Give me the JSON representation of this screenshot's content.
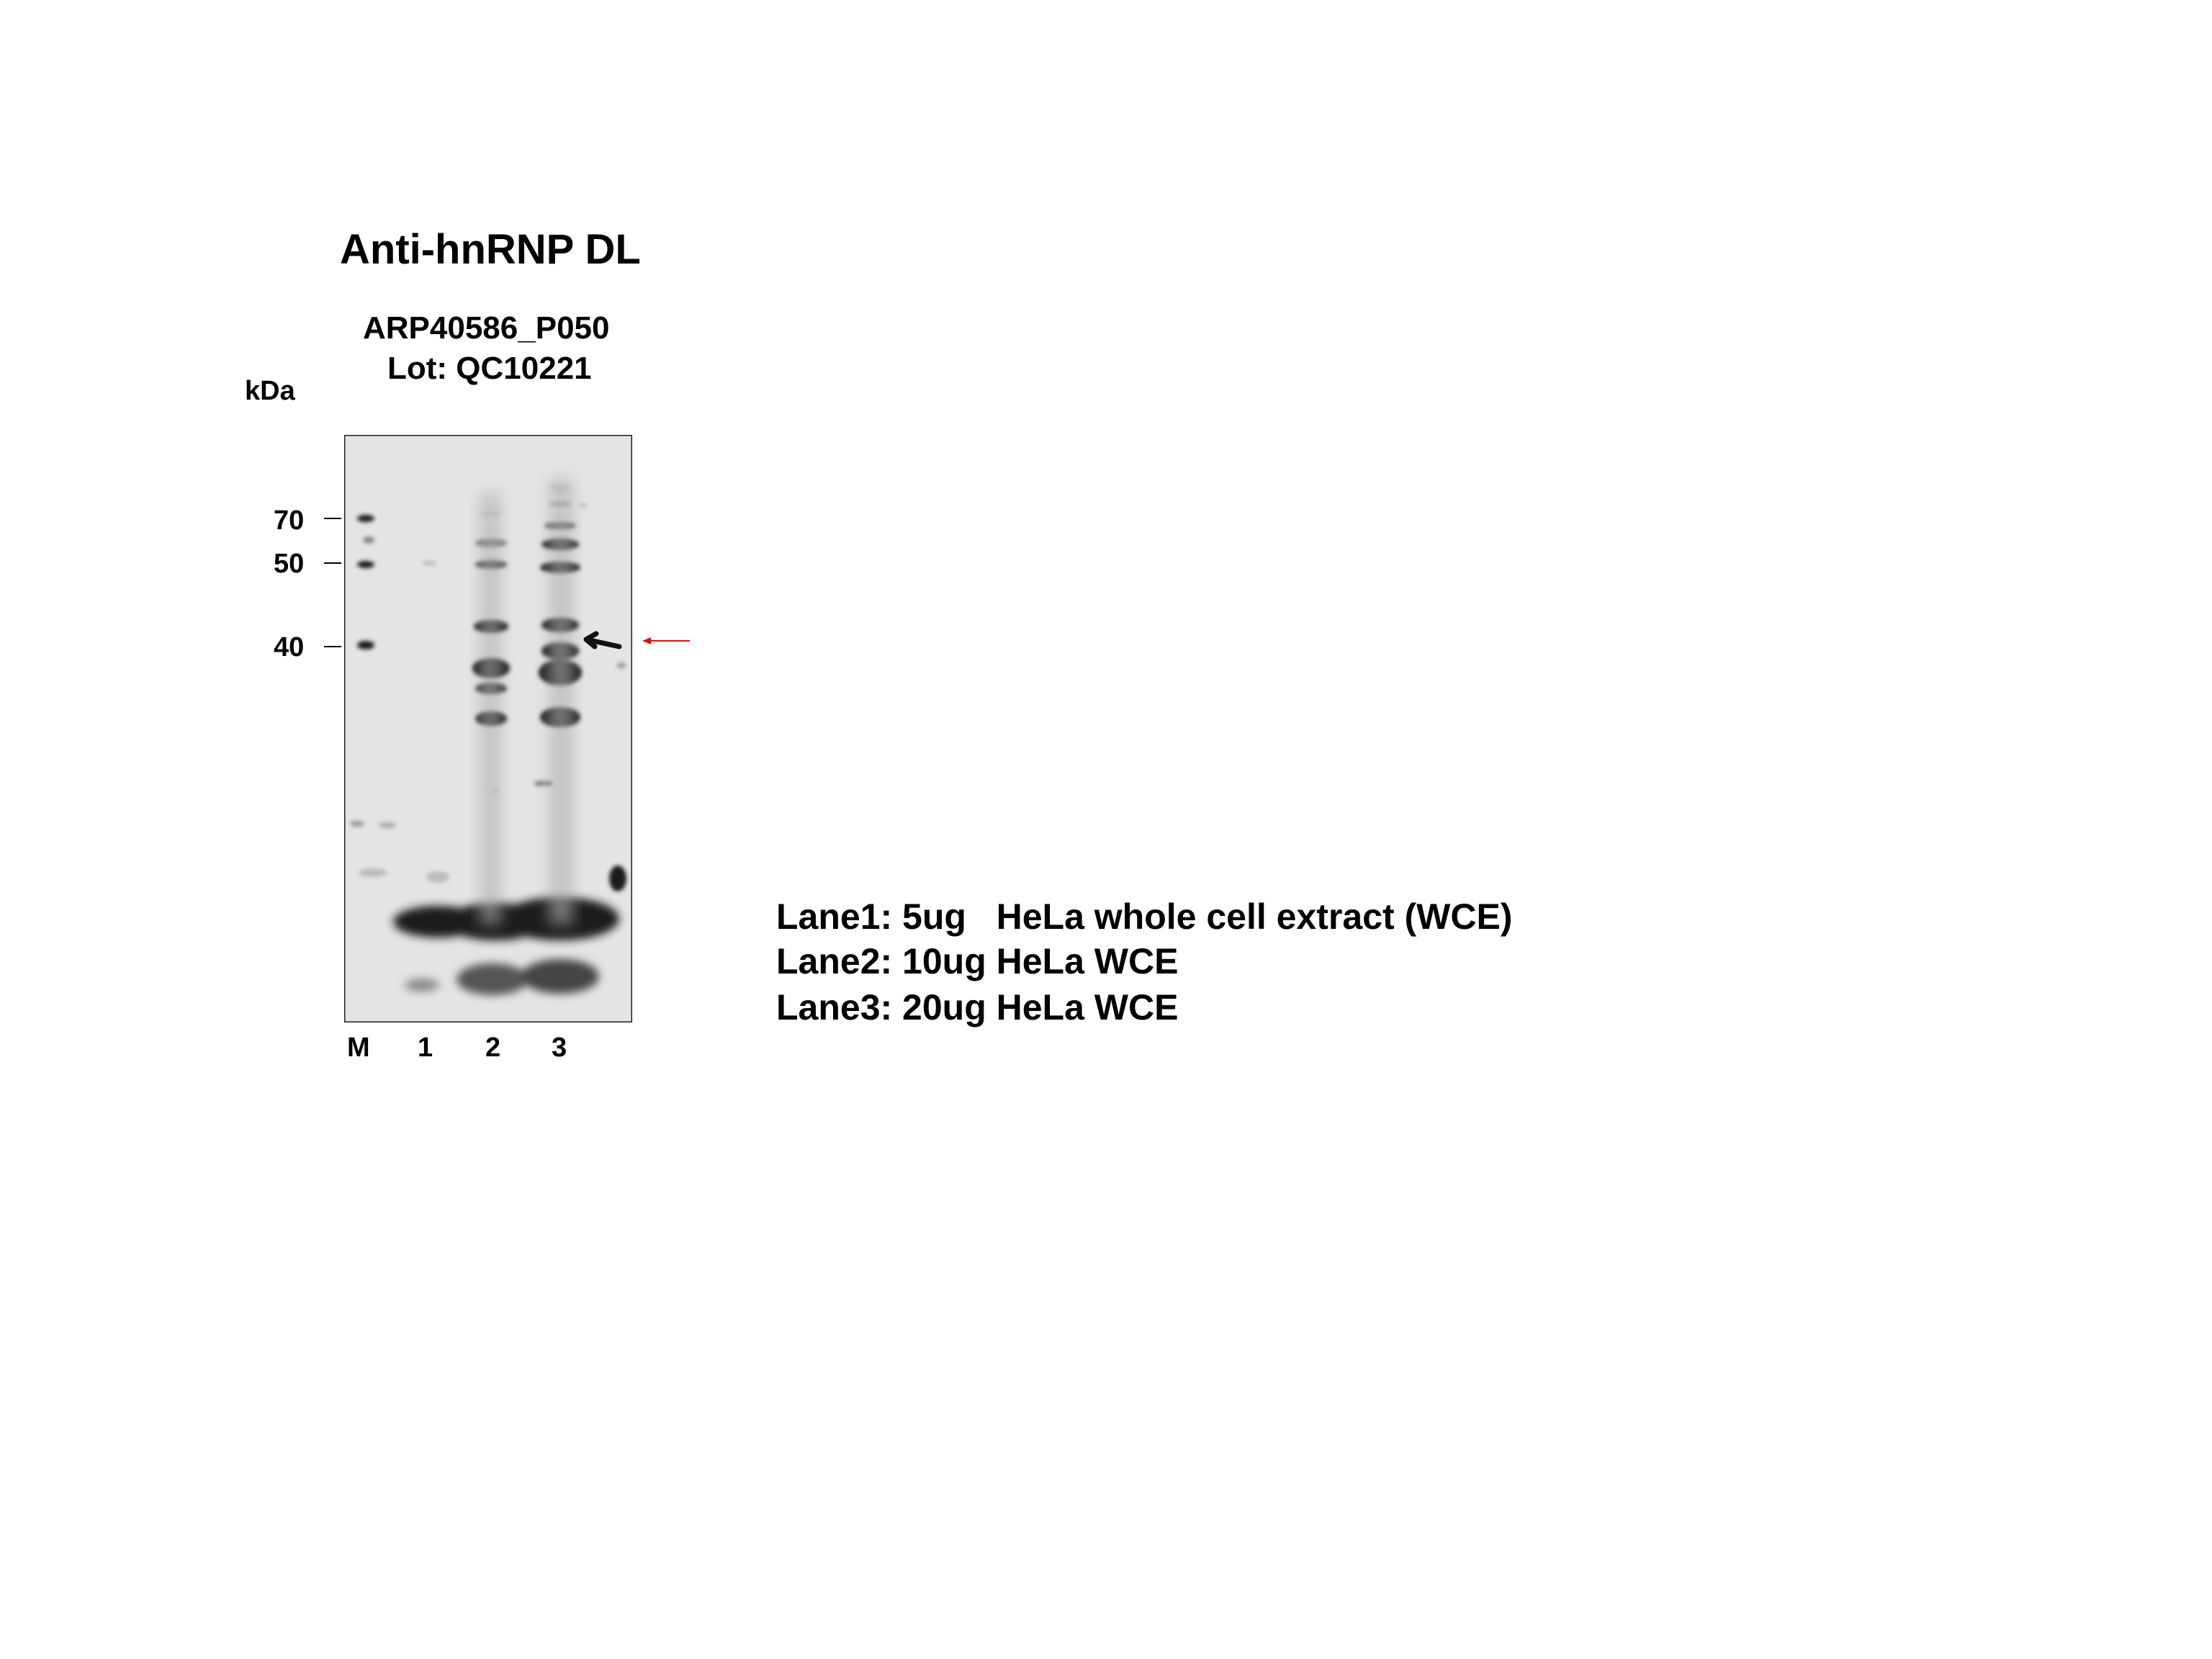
{
  "figure": {
    "title": "Anti-hnRNP DL",
    "antibody_id": "ARP40586_P050",
    "lot": "Lot: QC10221",
    "unit_label": "kDa",
    "mw_markers": [
      "70",
      "50",
      "40"
    ],
    "lanes": [
      "M",
      "1",
      "2",
      "3"
    ],
    "legend": [
      "Lane1: 5ug   HeLa whole cell extract (WCE)",
      "Lane2: 10ug HeLa WCE",
      "Lane3: 20ug HeLa WCE"
    ]
  },
  "colors": {
    "blot_background": "#e4e4e4",
    "band": "#1a1a1a",
    "target_arrow": "#e01010"
  }
}
